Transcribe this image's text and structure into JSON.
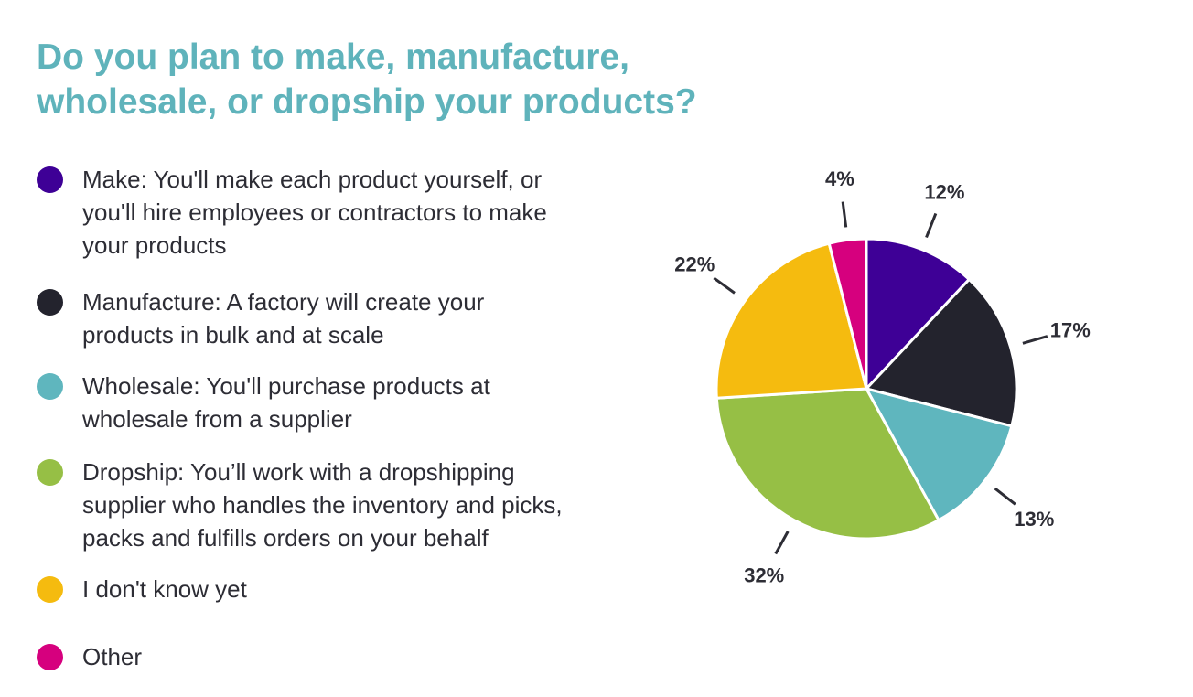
{
  "title_lines": [
    "Do you plan to make, manufacture,",
    "wholesale, or dropship your products?"
  ],
  "legend": [
    {
      "lines": [
        "Make: You'll make each product yourself, or",
        "you'll hire employees or contractors to make",
        "your products"
      ],
      "color": "#3e0096"
    },
    {
      "lines": [
        "Manufacture: A factory will create your",
        "products in bulk and at scale"
      ],
      "color": "#23232d"
    },
    {
      "lines": [
        "Wholesale: You'll purchase products at",
        "wholesale from a supplier"
      ],
      "color": "#5fb6be"
    },
    {
      "lines": [
        "Dropship: You’ll work with a dropshipping",
        "supplier who handles the inventory and picks,",
        "packs and fulfills orders on your behalf"
      ],
      "color": "#96bf45"
    },
    {
      "lines": [
        "I don't know yet"
      ],
      "color": "#f5bb0f"
    },
    {
      "lines": [
        "Other"
      ],
      "color": "#d6007e"
    }
  ],
  "chart_data": {
    "type": "pie",
    "title": "Do you plan to make, manufacture, wholesale, or dropship your products?",
    "categories": [
      "Make",
      "Manufacture",
      "Wholesale",
      "Dropship",
      "I don't know yet",
      "Other"
    ],
    "values": [
      12,
      17,
      13,
      32,
      22,
      4
    ],
    "labels": [
      "12%",
      "17%",
      "13%",
      "32%",
      "22%",
      "4%"
    ],
    "colors": [
      "#3e0096",
      "#23232d",
      "#5fb6be",
      "#96bf45",
      "#f5bb0f",
      "#d6007e"
    ],
    "start": "12 o'clock",
    "direction": "clockwise",
    "legend_position": "left"
  }
}
